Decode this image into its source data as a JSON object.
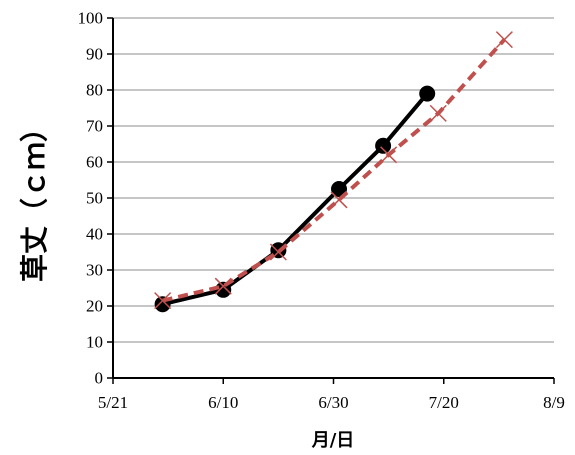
{
  "chart_data": {
    "type": "line",
    "xlabel": "月/日",
    "ylabel": "草丈（ｃｍ）",
    "x_ticks": [
      "5/21",
      "6/10",
      "6/30",
      "7/20",
      "8/9"
    ],
    "xlim": [
      "5/21",
      "8/9"
    ],
    "ylim": [
      0,
      100
    ],
    "y_ticks": [
      0,
      10,
      20,
      30,
      40,
      50,
      60,
      70,
      80,
      90,
      100
    ],
    "grid": "horizontal",
    "legend": "none",
    "series": [
      {
        "color": "#000000",
        "line_style": "solid",
        "marker": "circle",
        "points": [
          {
            "x": "5/30",
            "y": 20.5
          },
          {
            "x": "6/10",
            "y": 24.5
          },
          {
            "x": "6/20",
            "y": 35.5
          },
          {
            "x": "7/1",
            "y": 52.5
          },
          {
            "x": "7/9",
            "y": 64.5
          },
          {
            "x": "7/17",
            "y": 79
          }
        ]
      },
      {
        "color": "#c0504d",
        "line_style": "dashed",
        "marker": "x",
        "points": [
          {
            "x": "5/30",
            "y": 21.5
          },
          {
            "x": "6/10",
            "y": 25.5
          },
          {
            "x": "6/20",
            "y": 35
          },
          {
            "x": "7/1",
            "y": 49.5
          },
          {
            "x": "7/10",
            "y": 62
          },
          {
            "x": "7/19",
            "y": 73.5
          },
          {
            "x": "7/31",
            "y": 94
          }
        ]
      }
    ]
  }
}
